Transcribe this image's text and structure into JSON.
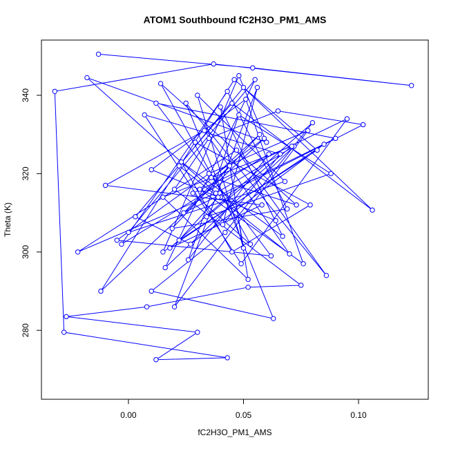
{
  "chart_data": {
    "type": "scatter-line",
    "title": "ATOM1 Southbound fC2H3O_PM1_AMS",
    "x_label": "fC2H3O_PM1_AMS",
    "y_label": "Theta (K)",
    "color": "#0000ff",
    "xlim": [
      -0.0378,
      0.1303
    ],
    "ylim": [
      262.4,
      354.1
    ],
    "xticks": [
      {
        "value": 0,
        "label": "0.00"
      },
      {
        "value": 0.05,
        "label": "0.05"
      },
      {
        "value": 0.1,
        "label": "0.10"
      }
    ],
    "yticks": [
      280,
      300,
      320,
      340
    ],
    "x": [
      -0.013,
      0.054,
      0.123,
      0.037,
      -0.032,
      -0.028,
      0.043,
      0.012,
      0.03,
      -0.027,
      0.008,
      0.052,
      0.075,
      0.02,
      0.035,
      0.065,
      0.102,
      0.04,
      -0.018,
      0.06,
      0.048,
      0.015,
      0.085,
      0.027,
      0.003,
      0.045,
      0.106,
      0.05,
      0.022,
      0.07,
      0.033,
      -0.01,
      0.058,
      0.018,
      0.08,
      0.042,
      0.01,
      0.063,
      0.025,
      0.086,
      0.047,
      -0.022,
      0.038,
      0.072,
      0.016,
      0.055,
      0.0,
      0.068,
      0.03,
      0.05,
      0.044,
      0.024,
      0.09,
      0.012,
      0.062,
      -0.005,
      0.035,
      0.078,
      0.02,
      0.056,
      0.041,
      0.066,
      0.007,
      0.049,
      0.095,
      0.028,
      0.053,
      0.014,
      0.073,
      0.036,
      0.059,
      -0.012,
      0.046,
      0.082,
      0.022,
      0.039,
      0.064,
      0.01,
      0.051,
      0.076,
      0.031,
      0.057,
      0.019,
      0.069,
      0.043,
      -0.003,
      0.061,
      0.026,
      0.048,
      0.088,
      0.034,
      0.071,
      0.015,
      0.052,
      0.04,
      0.067,
      0.023,
      0.045,
      0.079,
      0.029
    ],
    "y": [
      350.5,
      347,
      342.5,
      348,
      341,
      279.5,
      273,
      272.5,
      279.5,
      283.5,
      286,
      291,
      291.5,
      316,
      329,
      336,
      332.5,
      314,
      344.5,
      328,
      345,
      300,
      327.5,
      302,
      309,
      338,
      310.7,
      342,
      322,
      299.5,
      331,
      317,
      312,
      301,
      333,
      305,
      290,
      283,
      338,
      294,
      326,
      300,
      315,
      327,
      296,
      344,
      305,
      318,
      340,
      301,
      322,
      310,
      329,
      338,
      299,
      303,
      320,
      331,
      286,
      342,
      307,
      325,
      335,
      297,
      334,
      315,
      302,
      343,
      312,
      319,
      329,
      290,
      344,
      326,
      303,
      314,
      308,
      321,
      339,
      297,
      316,
      330,
      306,
      311,
      341,
      302,
      325,
      298,
      335,
      320,
      309,
      327,
      314,
      293,
      337,
      304,
      323,
      300,
      312,
      328
    ]
  }
}
